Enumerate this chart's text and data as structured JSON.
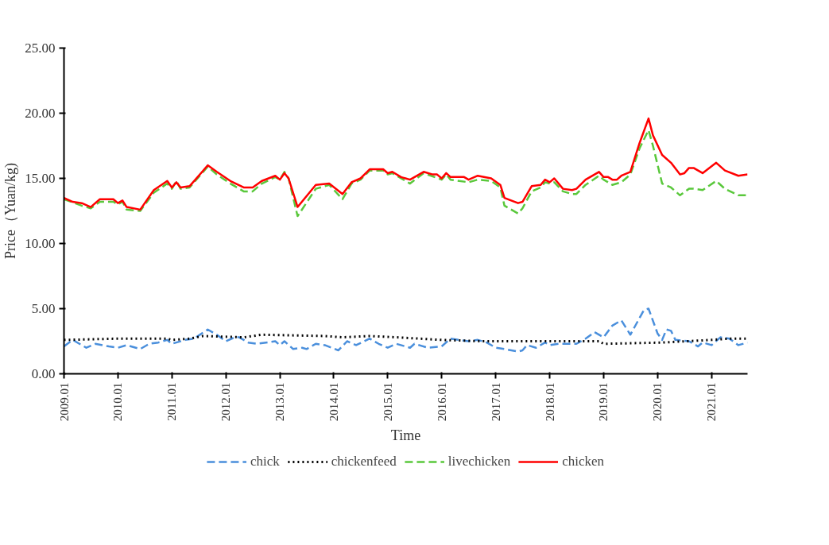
{
  "chart_data": {
    "type": "line",
    "xlabel": "Time",
    "ylabel": "Price（Yuan/kg)",
    "xlim": [
      "2009-01",
      "2021-09"
    ],
    "ylim": [
      0,
      25
    ],
    "xticks": [
      {
        "value": "2009-01",
        "label": "2009.01"
      },
      {
        "value": "2010-01",
        "label": "2010.01"
      },
      {
        "value": "2011-01",
        "label": "2011.01"
      },
      {
        "value": "2012-01",
        "label": "2012.01"
      },
      {
        "value": "2013-01",
        "label": "2013.01"
      },
      {
        "value": "2014-01",
        "label": "2014.01"
      },
      {
        "value": "2015-01",
        "label": "2015.01"
      },
      {
        "value": "2016-01",
        "label": "2016.01"
      },
      {
        "value": "2017-01",
        "label": "2017.01"
      },
      {
        "value": "2018-01",
        "label": "2018.01"
      },
      {
        "value": "2019-01",
        "label": "2019.01"
      },
      {
        "value": "2020-01",
        "label": "2020.01"
      },
      {
        "value": "2021-01",
        "label": "2021.01"
      }
    ],
    "yticks": [
      {
        "value": 0,
        "label": "0.00"
      },
      {
        "value": 5,
        "label": "5.00"
      },
      {
        "value": 10,
        "label": "10.00"
      },
      {
        "value": 15,
        "label": "15.00"
      },
      {
        "value": 20,
        "label": "20.00"
      },
      {
        "value": 25,
        "label": "25.00"
      }
    ],
    "grid": false,
    "legend": "bottom",
    "series": [
      {
        "name": "chick",
        "color": "#4a8fdc",
        "line_style": "dashed",
        "x": [
          "2009-01",
          "2009-03",
          "2009-06",
          "2009-08",
          "2009-11",
          "2010-01",
          "2010-03",
          "2010-06",
          "2010-08",
          "2010-10",
          "2010-12",
          "2011-01",
          "2011-04",
          "2011-06",
          "2011-09",
          "2011-11",
          "2012-01",
          "2012-03",
          "2012-04",
          "2012-06",
          "2012-08",
          "2012-12",
          "2013-01",
          "2013-02",
          "2013-04",
          "2013-06",
          "2013-07",
          "2013-09",
          "2013-11",
          "2014-02",
          "2014-04",
          "2014-06",
          "2014-09",
          "2014-11",
          "2015-01",
          "2015-03",
          "2015-06",
          "2015-07",
          "2015-10",
          "2016-01",
          "2016-03",
          "2016-07",
          "2016-09",
          "2016-11",
          "2017-01",
          "2017-03",
          "2017-06",
          "2017-07",
          "2017-08",
          "2017-10",
          "2017-12",
          "2018-01",
          "2018-03",
          "2018-07",
          "2018-09",
          "2018-11",
          "2019-01",
          "2019-03",
          "2019-05",
          "2019-07",
          "2019-10",
          "2019-11",
          "2020-01",
          "2020-02",
          "2020-03",
          "2020-04",
          "2020-05",
          "2020-08",
          "2020-10",
          "2020-11",
          "2021-01",
          "2021-03",
          "2021-05",
          "2021-07",
          "2021-09"
        ],
        "values": [
          2.1,
          2.6,
          2.0,
          2.3,
          2.1,
          2.0,
          2.2,
          1.9,
          2.3,
          2.4,
          2.6,
          2.3,
          2.6,
          2.7,
          3.4,
          3.0,
          2.5,
          2.8,
          2.8,
          2.4,
          2.3,
          2.5,
          2.2,
          2.5,
          1.9,
          2.0,
          1.9,
          2.3,
          2.2,
          1.8,
          2.5,
          2.2,
          2.7,
          2.3,
          2.0,
          2.3,
          2.0,
          2.3,
          2.0,
          2.1,
          2.7,
          2.5,
          2.6,
          2.4,
          2.0,
          1.9,
          1.7,
          1.8,
          2.2,
          2.0,
          2.4,
          2.2,
          2.3,
          2.3,
          2.7,
          3.2,
          2.8,
          3.7,
          4.1,
          3.0,
          4.9,
          5.0,
          3.1,
          2.6,
          3.4,
          3.3,
          2.6,
          2.5,
          2.1,
          2.4,
          2.2,
          2.8,
          2.7,
          2.2,
          2.4
        ]
      },
      {
        "name": "chickenfeed",
        "color": "#000000",
        "line_style": "dotted",
        "x": [
          "2009-01",
          "2010-01",
          "2010-12",
          "2011-01",
          "2011-05",
          "2011-08",
          "2012-05",
          "2012-09",
          "2013-11",
          "2014-03",
          "2014-09",
          "2015-03",
          "2016-01",
          "2016-10",
          "2018-01",
          "2018-12",
          "2019-01",
          "2020-02",
          "2021-01",
          "2021-05",
          "2021-09"
        ],
        "values": [
          2.6,
          2.7,
          2.7,
          2.6,
          2.7,
          2.9,
          2.8,
          3.0,
          2.9,
          2.8,
          2.9,
          2.8,
          2.6,
          2.5,
          2.5,
          2.5,
          2.3,
          2.4,
          2.6,
          2.7,
          2.7
        ]
      },
      {
        "name": "livechicken",
        "color": "#5ac83c",
        "line_style": "dashed",
        "x": [
          "2009-01",
          "2009-05",
          "2009-07",
          "2009-09",
          "2009-12",
          "2010-01",
          "2010-02",
          "2010-03",
          "2010-06",
          "2010-09",
          "2010-12",
          "2011-01",
          "2011-02",
          "2011-03",
          "2011-05",
          "2011-09",
          "2011-11",
          "2012-02",
          "2012-05",
          "2012-07",
          "2012-09",
          "2012-12",
          "2013-01",
          "2013-02",
          "2013-03",
          "2013-05",
          "2013-09",
          "2013-12",
          "2014-03",
          "2014-05",
          "2014-07",
          "2014-09",
          "2014-12",
          "2015-01",
          "2015-02",
          "2015-06",
          "2015-09",
          "2016-01",
          "2016-02",
          "2016-03",
          "2016-07",
          "2016-09",
          "2016-12",
          "2017-02",
          "2017-03",
          "2017-06",
          "2017-07",
          "2017-09",
          "2017-11",
          "2017-12",
          "2018-01",
          "2018-02",
          "2018-04",
          "2018-06",
          "2018-07",
          "2018-09",
          "2018-12",
          "2019-01",
          "2019-03",
          "2019-05",
          "2019-07",
          "2019-09",
          "2019-11",
          "2019-12",
          "2020-02",
          "2020-04",
          "2020-06",
          "2020-08",
          "2020-09",
          "2020-11",
          "2021-02",
          "2021-04",
          "2021-07",
          "2021-09"
        ],
        "values": [
          13.4,
          12.9,
          12.7,
          13.2,
          13.2,
          13.0,
          13.2,
          12.6,
          12.5,
          13.9,
          14.6,
          14.2,
          14.8,
          14.2,
          14.3,
          15.9,
          15.3,
          14.6,
          14.0,
          14.0,
          14.6,
          15.1,
          14.9,
          15.5,
          15.0,
          12.1,
          14.2,
          14.5,
          13.4,
          14.6,
          14.9,
          15.6,
          15.6,
          15.3,
          15.4,
          14.6,
          15.4,
          14.9,
          15.3,
          14.9,
          14.7,
          14.9,
          14.8,
          14.3,
          12.9,
          12.3,
          12.7,
          14.0,
          14.3,
          14.7,
          14.6,
          14.7,
          14.0,
          13.8,
          13.8,
          14.5,
          15.2,
          14.9,
          14.5,
          14.7,
          15.3,
          17.3,
          18.7,
          17.5,
          14.6,
          14.3,
          13.7,
          14.2,
          14.2,
          14.1,
          14.8,
          14.2,
          13.7,
          13.7
        ]
      },
      {
        "name": "chicken",
        "color": "#ff0000",
        "line_style": "solid",
        "x": [
          "2009-01",
          "2009-03",
          "2009-05",
          "2009-07",
          "2009-09",
          "2009-11",
          "2009-12",
          "2010-01",
          "2010-02",
          "2010-03",
          "2010-06",
          "2010-09",
          "2010-12",
          "2011-01",
          "2011-02",
          "2011-03",
          "2011-05",
          "2011-09",
          "2011-11",
          "2012-02",
          "2012-05",
          "2012-07",
          "2012-09",
          "2012-12",
          "2013-01",
          "2013-02",
          "2013-03",
          "2013-05",
          "2013-09",
          "2013-12",
          "2014-03",
          "2014-05",
          "2014-07",
          "2014-09",
          "2014-12",
          "2015-01",
          "2015-02",
          "2015-04",
          "2015-06",
          "2015-09",
          "2015-11",
          "2015-12",
          "2016-01",
          "2016-02",
          "2016-03",
          "2016-06",
          "2016-07",
          "2016-09",
          "2016-12",
          "2017-02",
          "2017-03",
          "2017-06",
          "2017-07",
          "2017-09",
          "2017-11",
          "2017-12",
          "2018-01",
          "2018-02",
          "2018-04",
          "2018-06",
          "2018-07",
          "2018-09",
          "2018-12",
          "2019-01",
          "2019-02",
          "2019-03",
          "2019-04",
          "2019-05",
          "2019-07",
          "2019-09",
          "2019-11",
          "2019-12",
          "2020-02",
          "2020-04",
          "2020-06",
          "2020-07",
          "2020-08",
          "2020-09",
          "2020-11",
          "2021-02",
          "2021-04",
          "2021-07",
          "2021-09"
        ],
        "values": [
          13.5,
          13.2,
          13.1,
          12.8,
          13.4,
          13.4,
          13.4,
          13.1,
          13.3,
          12.8,
          12.6,
          14.1,
          14.8,
          14.3,
          14.7,
          14.3,
          14.4,
          16.0,
          15.5,
          14.8,
          14.3,
          14.3,
          14.8,
          15.2,
          14.9,
          15.4,
          15.0,
          12.8,
          14.5,
          14.6,
          13.8,
          14.7,
          15.0,
          15.7,
          15.7,
          15.4,
          15.5,
          15.1,
          14.9,
          15.5,
          15.3,
          15.3,
          15.0,
          15.4,
          15.1,
          15.1,
          14.9,
          15.2,
          15.0,
          14.5,
          13.5,
          13.1,
          13.2,
          14.4,
          14.5,
          14.9,
          14.7,
          15.0,
          14.2,
          14.1,
          14.2,
          14.9,
          15.5,
          15.1,
          15.1,
          14.9,
          14.9,
          15.2,
          15.5,
          17.7,
          19.6,
          18.3,
          16.8,
          16.2,
          15.3,
          15.4,
          15.8,
          15.8,
          15.4,
          16.2,
          15.6,
          15.2,
          15.3
        ]
      }
    ]
  }
}
